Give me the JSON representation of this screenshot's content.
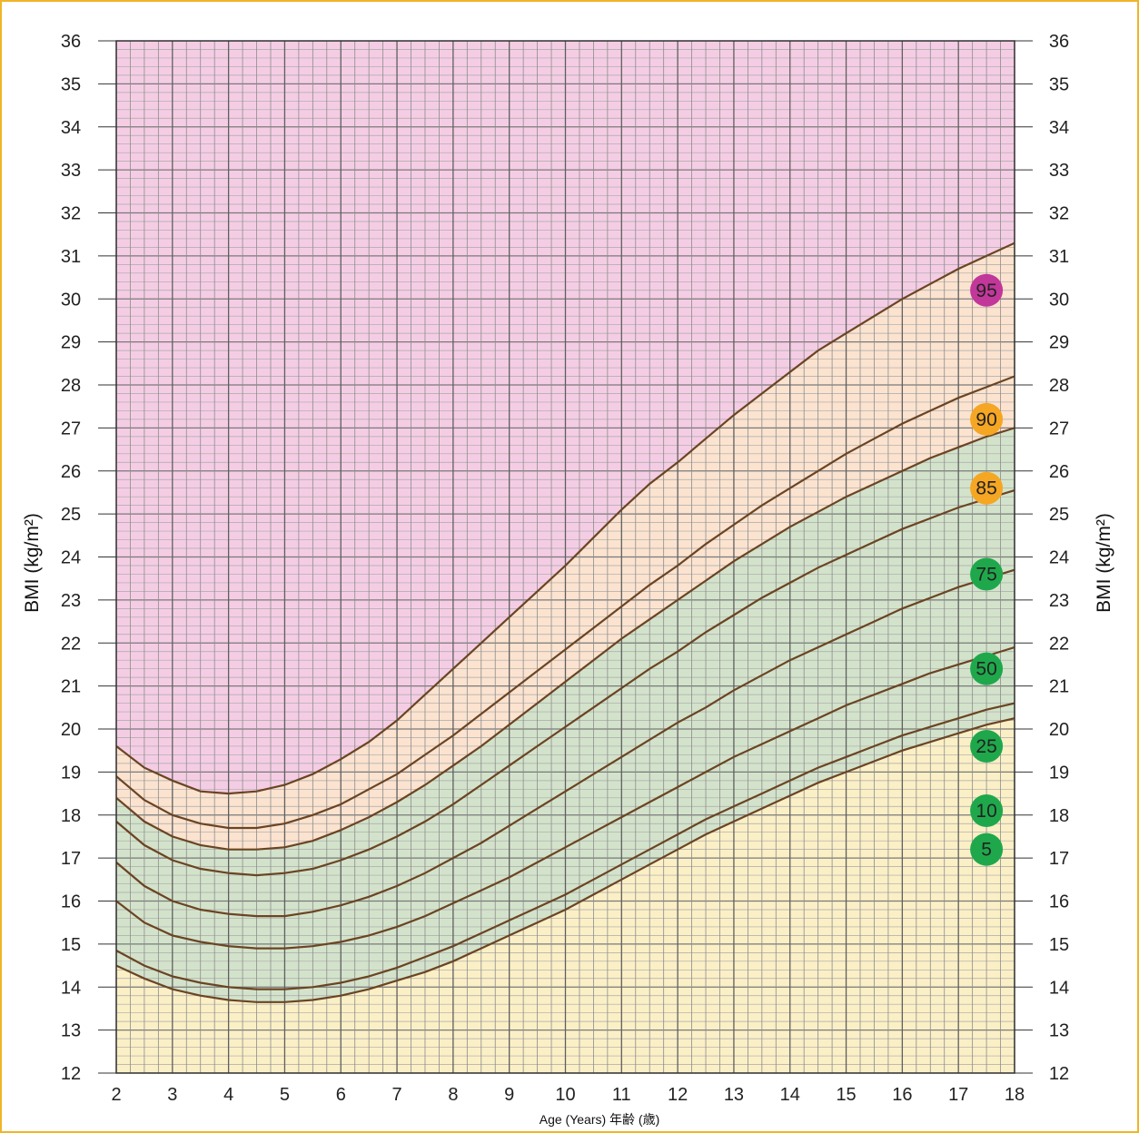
{
  "chart_data": {
    "type": "line",
    "title": "",
    "xlabel": "Age (Years) 年齢 (歳)",
    "ylabel": "BMI (kg/m²)",
    "xlim": [
      2,
      18
    ],
    "ylim": [
      12,
      36
    ],
    "x_ticks": [
      2,
      3,
      4,
      5,
      6,
      7,
      8,
      9,
      10,
      11,
      12,
      13,
      14,
      15,
      16,
      17,
      18
    ],
    "y_ticks": [
      12,
      13,
      14,
      15,
      16,
      17,
      18,
      19,
      20,
      21,
      22,
      23,
      24,
      25,
      26,
      27,
      28,
      29,
      30,
      31,
      32,
      33,
      34,
      35,
      36
    ],
    "grid": true,
    "zone_colors": {
      "above_95": "#f4cde4",
      "85_to_95": "#fbe3cf",
      "5_to_85": "#d3e3cb",
      "below_5": "#fbefc6"
    },
    "curve_color": "#6b4423",
    "series": [
      {
        "name": "95",
        "color": "#c2379a",
        "points": [
          [
            2,
            19.6
          ],
          [
            2.5,
            19.1
          ],
          [
            3,
            18.8
          ],
          [
            3.5,
            18.55
          ],
          [
            4,
            18.5
          ],
          [
            4.5,
            18.55
          ],
          [
            5,
            18.7
          ],
          [
            5.5,
            18.95
          ],
          [
            6,
            19.3
          ],
          [
            6.5,
            19.7
          ],
          [
            7,
            20.2
          ],
          [
            7.5,
            20.8
          ],
          [
            8,
            21.4
          ],
          [
            8.5,
            22.0
          ],
          [
            9,
            22.6
          ],
          [
            9.5,
            23.2
          ],
          [
            10,
            23.8
          ],
          [
            10.5,
            24.45
          ],
          [
            11,
            25.1
          ],
          [
            11.5,
            25.7
          ],
          [
            12,
            26.2
          ],
          [
            12.5,
            26.75
          ],
          [
            13,
            27.3
          ],
          [
            13.5,
            27.8
          ],
          [
            14,
            28.3
          ],
          [
            14.5,
            28.8
          ],
          [
            15,
            29.2
          ],
          [
            15.5,
            29.6
          ],
          [
            16,
            30.0
          ],
          [
            16.5,
            30.35
          ],
          [
            17,
            30.7
          ],
          [
            17.5,
            31.0
          ],
          [
            18,
            31.3
          ]
        ]
      },
      {
        "name": "90",
        "color": "#f5a623",
        "points": [
          [
            2,
            18.9
          ],
          [
            2.5,
            18.35
          ],
          [
            3,
            18.0
          ],
          [
            3.5,
            17.8
          ],
          [
            4,
            17.7
          ],
          [
            4.5,
            17.7
          ],
          [
            5,
            17.8
          ],
          [
            5.5,
            18.0
          ],
          [
            6,
            18.25
          ],
          [
            6.5,
            18.6
          ],
          [
            7,
            18.95
          ],
          [
            7.5,
            19.4
          ],
          [
            8,
            19.85
          ],
          [
            8.5,
            20.35
          ],
          [
            9,
            20.85
          ],
          [
            9.5,
            21.35
          ],
          [
            10,
            21.85
          ],
          [
            10.5,
            22.35
          ],
          [
            11,
            22.85
          ],
          [
            11.5,
            23.35
          ],
          [
            12,
            23.8
          ],
          [
            12.5,
            24.3
          ],
          [
            13,
            24.75
          ],
          [
            13.5,
            25.2
          ],
          [
            14,
            25.6
          ],
          [
            14.5,
            26.0
          ],
          [
            15,
            26.4
          ],
          [
            15.5,
            26.75
          ],
          [
            16,
            27.1
          ],
          [
            16.5,
            27.4
          ],
          [
            17,
            27.7
          ],
          [
            17.5,
            27.95
          ],
          [
            18,
            28.2
          ]
        ]
      },
      {
        "name": "85",
        "color": "#f5a623",
        "points": [
          [
            2,
            18.4
          ],
          [
            2.5,
            17.85
          ],
          [
            3,
            17.5
          ],
          [
            3.5,
            17.3
          ],
          [
            4,
            17.2
          ],
          [
            4.5,
            17.2
          ],
          [
            5,
            17.25
          ],
          [
            5.5,
            17.4
          ],
          [
            6,
            17.65
          ],
          [
            6.5,
            17.95
          ],
          [
            7,
            18.3
          ],
          [
            7.5,
            18.7
          ],
          [
            8,
            19.15
          ],
          [
            8.5,
            19.6
          ],
          [
            9,
            20.1
          ],
          [
            9.5,
            20.6
          ],
          [
            10,
            21.1
          ],
          [
            10.5,
            21.6
          ],
          [
            11,
            22.1
          ],
          [
            11.5,
            22.55
          ],
          [
            12,
            23.0
          ],
          [
            12.5,
            23.45
          ],
          [
            13,
            23.9
          ],
          [
            13.5,
            24.3
          ],
          [
            14,
            24.7
          ],
          [
            14.5,
            25.05
          ],
          [
            15,
            25.4
          ],
          [
            15.5,
            25.7
          ],
          [
            16,
            26.0
          ],
          [
            16.5,
            26.3
          ],
          [
            17,
            26.55
          ],
          [
            17.5,
            26.8
          ],
          [
            18,
            27.0
          ]
        ]
      },
      {
        "name": "75",
        "color": "#1fa84b",
        "points": [
          [
            2,
            17.85
          ],
          [
            2.5,
            17.3
          ],
          [
            3,
            16.95
          ],
          [
            3.5,
            16.75
          ],
          [
            4,
            16.65
          ],
          [
            4.5,
            16.6
          ],
          [
            5,
            16.65
          ],
          [
            5.5,
            16.75
          ],
          [
            6,
            16.95
          ],
          [
            6.5,
            17.2
          ],
          [
            7,
            17.5
          ],
          [
            7.5,
            17.85
          ],
          [
            8,
            18.25
          ],
          [
            8.5,
            18.7
          ],
          [
            9,
            19.15
          ],
          [
            9.5,
            19.6
          ],
          [
            10,
            20.05
          ],
          [
            10.5,
            20.5
          ],
          [
            11,
            20.95
          ],
          [
            11.5,
            21.4
          ],
          [
            12,
            21.8
          ],
          [
            12.5,
            22.25
          ],
          [
            13,
            22.65
          ],
          [
            13.5,
            23.05
          ],
          [
            14,
            23.4
          ],
          [
            14.5,
            23.75
          ],
          [
            15,
            24.05
          ],
          [
            15.5,
            24.35
          ],
          [
            16,
            24.65
          ],
          [
            16.5,
            24.9
          ],
          [
            17,
            25.15
          ],
          [
            17.5,
            25.35
          ],
          [
            18,
            25.55
          ]
        ]
      },
      {
        "name": "50",
        "color": "#1fa84b",
        "points": [
          [
            2,
            16.9
          ],
          [
            2.5,
            16.35
          ],
          [
            3,
            16.0
          ],
          [
            3.5,
            15.8
          ],
          [
            4,
            15.7
          ],
          [
            4.5,
            15.65
          ],
          [
            5,
            15.65
          ],
          [
            5.5,
            15.75
          ],
          [
            6,
            15.9
          ],
          [
            6.5,
            16.1
          ],
          [
            7,
            16.35
          ],
          [
            7.5,
            16.65
          ],
          [
            8,
            17.0
          ],
          [
            8.5,
            17.35
          ],
          [
            9,
            17.75
          ],
          [
            9.5,
            18.15
          ],
          [
            10,
            18.55
          ],
          [
            10.5,
            18.95
          ],
          [
            11,
            19.35
          ],
          [
            11.5,
            19.75
          ],
          [
            12,
            20.15
          ],
          [
            12.5,
            20.5
          ],
          [
            13,
            20.9
          ],
          [
            13.5,
            21.25
          ],
          [
            14,
            21.6
          ],
          [
            14.5,
            21.9
          ],
          [
            15,
            22.2
          ],
          [
            15.5,
            22.5
          ],
          [
            16,
            22.8
          ],
          [
            16.5,
            23.05
          ],
          [
            17,
            23.3
          ],
          [
            17.5,
            23.5
          ],
          [
            18,
            23.7
          ]
        ]
      },
      {
        "name": "25",
        "color": "#1fa84b",
        "points": [
          [
            2,
            16.0
          ],
          [
            2.5,
            15.5
          ],
          [
            3,
            15.2
          ],
          [
            3.5,
            15.05
          ],
          [
            4,
            14.95
          ],
          [
            4.5,
            14.9
          ],
          [
            5,
            14.9
          ],
          [
            5.5,
            14.95
          ],
          [
            6,
            15.05
          ],
          [
            6.5,
            15.2
          ],
          [
            7,
            15.4
          ],
          [
            7.5,
            15.65
          ],
          [
            8,
            15.95
          ],
          [
            8.5,
            16.25
          ],
          [
            9,
            16.55
          ],
          [
            9.5,
            16.9
          ],
          [
            10,
            17.25
          ],
          [
            10.5,
            17.6
          ],
          [
            11,
            17.95
          ],
          [
            11.5,
            18.3
          ],
          [
            12,
            18.65
          ],
          [
            12.5,
            19.0
          ],
          [
            13,
            19.35
          ],
          [
            13.5,
            19.65
          ],
          [
            14,
            19.95
          ],
          [
            14.5,
            20.25
          ],
          [
            15,
            20.55
          ],
          [
            15.5,
            20.8
          ],
          [
            16,
            21.05
          ],
          [
            16.5,
            21.3
          ],
          [
            17,
            21.5
          ],
          [
            17.5,
            21.7
          ],
          [
            18,
            21.9
          ]
        ]
      },
      {
        "name": "10",
        "color": "#1fa84b",
        "points": [
          [
            2,
            14.85
          ],
          [
            2.5,
            14.5
          ],
          [
            3,
            14.25
          ],
          [
            3.5,
            14.1
          ],
          [
            4,
            14.0
          ],
          [
            4.5,
            13.95
          ],
          [
            5,
            13.95
          ],
          [
            5.5,
            14.0
          ],
          [
            6,
            14.1
          ],
          [
            6.5,
            14.25
          ],
          [
            7,
            14.45
          ],
          [
            7.5,
            14.7
          ],
          [
            8,
            14.95
          ],
          [
            8.5,
            15.25
          ],
          [
            9,
            15.55
          ],
          [
            9.5,
            15.85
          ],
          [
            10,
            16.15
          ],
          [
            10.5,
            16.5
          ],
          [
            11,
            16.85
          ],
          [
            11.5,
            17.2
          ],
          [
            12,
            17.55
          ],
          [
            12.5,
            17.9
          ],
          [
            13,
            18.2
          ],
          [
            13.5,
            18.5
          ],
          [
            14,
            18.8
          ],
          [
            14.5,
            19.1
          ],
          [
            15,
            19.35
          ],
          [
            15.5,
            19.6
          ],
          [
            16,
            19.85
          ],
          [
            16.5,
            20.05
          ],
          [
            17,
            20.25
          ],
          [
            17.5,
            20.45
          ],
          [
            18,
            20.6
          ]
        ]
      },
      {
        "name": "5",
        "color": "#1fa84b",
        "points": [
          [
            2,
            14.5
          ],
          [
            2.5,
            14.2
          ],
          [
            3,
            13.95
          ],
          [
            3.5,
            13.8
          ],
          [
            4,
            13.7
          ],
          [
            4.5,
            13.65
          ],
          [
            5,
            13.65
          ],
          [
            5.5,
            13.7
          ],
          [
            6,
            13.8
          ],
          [
            6.5,
            13.95
          ],
          [
            7,
            14.15
          ],
          [
            7.5,
            14.35
          ],
          [
            8,
            14.6
          ],
          [
            8.5,
            14.9
          ],
          [
            9,
            15.2
          ],
          [
            9.5,
            15.5
          ],
          [
            10,
            15.8
          ],
          [
            10.5,
            16.15
          ],
          [
            11,
            16.5
          ],
          [
            11.5,
            16.85
          ],
          [
            12,
            17.2
          ],
          [
            12.5,
            17.55
          ],
          [
            13,
            17.85
          ],
          [
            13.5,
            18.15
          ],
          [
            14,
            18.45
          ],
          [
            14.5,
            18.75
          ],
          [
            15,
            19.0
          ],
          [
            15.5,
            19.25
          ],
          [
            16,
            19.5
          ],
          [
            16.5,
            19.7
          ],
          [
            17,
            19.9
          ],
          [
            17.5,
            20.1
          ],
          [
            18,
            20.25
          ]
        ]
      }
    ],
    "badges": [
      {
        "label": "95",
        "y": 30.2,
        "color": "#c2379a"
      },
      {
        "label": "90",
        "y": 27.2,
        "color": "#f5a623"
      },
      {
        "label": "85",
        "y": 25.6,
        "color": "#f5a623"
      },
      {
        "label": "75",
        "y": 23.6,
        "color": "#1fa84b"
      },
      {
        "label": "50",
        "y": 21.4,
        "color": "#1fa84b"
      },
      {
        "label": "25",
        "y": 19.6,
        "color": "#1fa84b"
      },
      {
        "label": "10",
        "y": 18.1,
        "color": "#1fa84b"
      },
      {
        "label": "5",
        "y": 17.2,
        "color": "#1fa84b"
      }
    ]
  }
}
